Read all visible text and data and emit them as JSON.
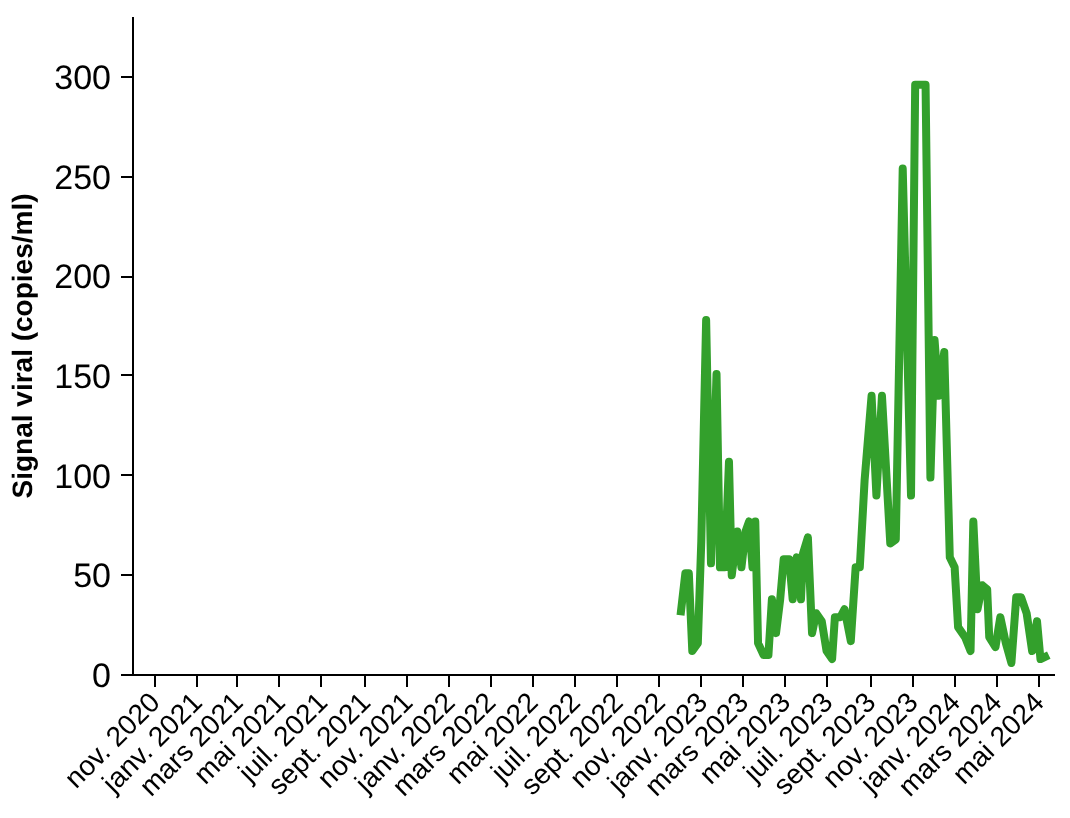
{
  "chart_data": {
    "type": "line",
    "ylabel": "Signal viral (copies/ml)",
    "x": [
      "2022-12-01",
      "2022-12-08",
      "2022-12-13",
      "2022-12-18",
      "2022-12-26",
      "2022-12-31",
      "2023-01-07",
      "2023-01-14",
      "2023-01-22",
      "2023-01-27",
      "2023-02-03",
      "2023-02-09",
      "2023-02-13",
      "2023-02-21",
      "2023-02-27",
      "2023-03-05",
      "2023-03-10",
      "2023-03-15",
      "2023-03-19",
      "2023-03-23",
      "2023-03-31",
      "2023-04-07",
      "2023-04-12",
      "2023-04-18",
      "2023-04-24",
      "2023-04-29",
      "2023-05-07",
      "2023-05-12",
      "2023-05-18",
      "2023-05-24",
      "2023-05-27",
      "2023-06-03",
      "2023-06-09",
      "2023-06-15",
      "2023-06-23",
      "2023-06-30",
      "2023-07-08",
      "2023-07-12",
      "2023-07-20",
      "2023-07-26",
      "2023-08-04",
      "2023-08-11",
      "2023-08-17",
      "2023-08-24",
      "2023-09-03",
      "2023-09-10",
      "2023-09-18",
      "2023-09-30",
      "2023-10-08",
      "2023-10-18",
      "2023-10-30",
      "2023-11-05",
      "2023-11-20",
      "2023-11-27",
      "2023-12-03",
      "2023-12-09",
      "2023-12-17",
      "2023-12-25",
      "2024-01-01",
      "2024-01-06",
      "2024-01-16",
      "2024-01-24",
      "2024-01-28",
      "2024-02-03",
      "2024-02-10",
      "2024-02-17",
      "2024-02-20",
      "2024-02-29",
      "2024-03-07",
      "2024-03-15",
      "2024-03-23",
      "2024-03-30",
      "2024-04-06",
      "2024-04-14",
      "2024-04-22",
      "2024-04-29",
      "2024-05-04",
      "2024-05-16"
    ],
    "series": [
      {
        "color": "#33a02c",
        "values": [
          30,
          51,
          51,
          12,
          16,
          67,
          178,
          56,
          151,
          54,
          54,
          107,
          50,
          72,
          54,
          72,
          77,
          54,
          77,
          16,
          10,
          10,
          38,
          21,
          38,
          58,
          58,
          38,
          59,
          38,
          61,
          69,
          21,
          31,
          27,
          12,
          8,
          29,
          29,
          33,
          17,
          54,
          54,
          98,
          140,
          90,
          140,
          66,
          68,
          254,
          90,
          296,
          296,
          99,
          168,
          140,
          162,
          59,
          54,
          24,
          19,
          12,
          77,
          33,
          45,
          43,
          19,
          14,
          29,
          16,
          6,
          39,
          39,
          31,
          12,
          27,
          8,
          10
        ]
      }
    ],
    "xlim": [
      "2020-10-01",
      "2024-05-25"
    ],
    "xticks": [
      {
        "value": "2020-11",
        "label": "nov. 2020"
      },
      {
        "value": "2021-01",
        "label": "janv. 2021"
      },
      {
        "value": "2021-03",
        "label": "mars 2021"
      },
      {
        "value": "2021-05",
        "label": "mai 2021"
      },
      {
        "value": "2021-07",
        "label": "juil. 2021"
      },
      {
        "value": "2021-09",
        "label": "sept. 2021"
      },
      {
        "value": "2021-11",
        "label": "nov. 2021"
      },
      {
        "value": "2022-01",
        "label": "janv. 2022"
      },
      {
        "value": "2022-03",
        "label": "mars 2022"
      },
      {
        "value": "2022-05",
        "label": "mai 2022"
      },
      {
        "value": "2022-07",
        "label": "juil. 2022"
      },
      {
        "value": "2022-09",
        "label": "sept. 2022"
      },
      {
        "value": "2022-11",
        "label": "nov. 2022"
      },
      {
        "value": "2023-01",
        "label": "janv. 2023"
      },
      {
        "value": "2023-03",
        "label": "mars 2023"
      },
      {
        "value": "2023-05",
        "label": "mai 2023"
      },
      {
        "value": "2023-07",
        "label": "juil. 2023"
      },
      {
        "value": "2023-09",
        "label": "sept. 2023"
      },
      {
        "value": "2023-11",
        "label": "nov. 2023"
      },
      {
        "value": "2024-01",
        "label": "janv. 2024"
      },
      {
        "value": "2024-03",
        "label": "mars 2024"
      },
      {
        "value": "2024-05",
        "label": "mai 2024"
      }
    ],
    "ylim": [
      0,
      330
    ],
    "yticks": [
      0,
      50,
      100,
      150,
      200,
      250,
      300
    ],
    "grid": false,
    "marker": "none",
    "line_style": "solid"
  }
}
